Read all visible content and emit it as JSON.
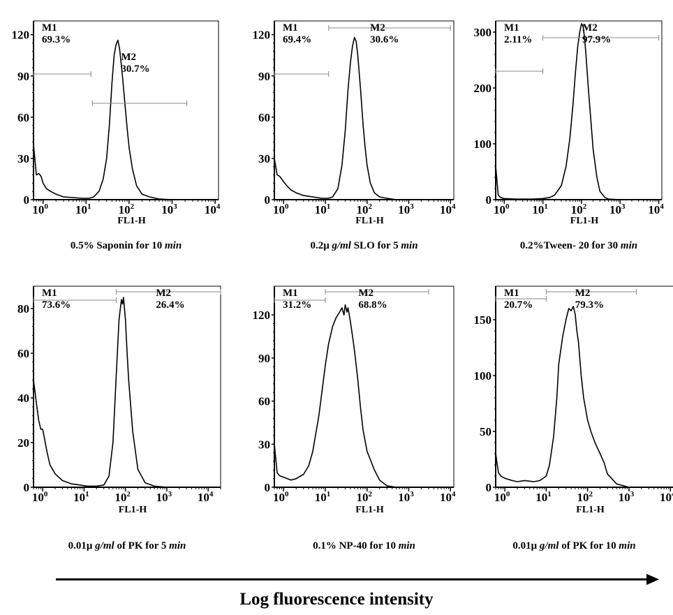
{
  "figure": {
    "x_axis_title": "Log fluorescence intensity"
  },
  "chart_data": [
    {
      "type": "line",
      "xlabel": "FL1-H",
      "caption": {
        "pre": "0.5% Saponin for 10 ",
        "em": "min",
        "post": ""
      },
      "xscale": "log",
      "xlim": [
        0.6,
        12000
      ],
      "ylim": [
        0,
        130
      ],
      "yticks": [
        0,
        30,
        60,
        90,
        120
      ],
      "x": [
        0.6,
        0.7,
        0.8,
        0.9,
        1,
        1.2,
        1.5,
        2,
        3,
        5,
        8,
        12,
        15,
        20,
        25,
        30,
        35,
        40,
        45,
        50,
        55,
        60,
        65,
        70,
        80,
        90,
        100,
        120,
        150,
        200,
        300,
        500,
        1000,
        2000,
        5000,
        10000
      ],
      "y": [
        40,
        18,
        19,
        17,
        12,
        8,
        6,
        4,
        2,
        1.5,
        1,
        1,
        2,
        6,
        15,
        30,
        55,
        85,
        105,
        113,
        116,
        110,
        100,
        90,
        70,
        52,
        38,
        22,
        10,
        4,
        2,
        0.5,
        0,
        0,
        0,
        0
      ],
      "markers": [
        {
          "name": "M1",
          "percent": "69.3%",
          "x_start": 0.6,
          "x_end": 13
        },
        {
          "name": "M2",
          "percent": "30.7%",
          "x_start": 14,
          "x_end": 2200
        }
      ]
    },
    {
      "type": "line",
      "xlabel": "FL1-H",
      "caption": {
        "pre": "0.2μ ",
        "em": "g/ml",
        "post": " SLO for 5 ",
        "em2": "min"
      },
      "xscale": "log",
      "xlim": [
        0.6,
        12000
      ],
      "ylim": [
        0,
        130
      ],
      "yticks": [
        0,
        30,
        60,
        90,
        120
      ],
      "x": [
        0.6,
        0.7,
        0.8,
        0.9,
        1,
        1.2,
        1.5,
        2,
        3,
        5,
        8,
        12,
        15,
        20,
        25,
        30,
        35,
        40,
        45,
        50,
        55,
        60,
        70,
        80,
        90,
        100,
        120,
        150,
        200,
        300,
        500,
        1000,
        10000
      ],
      "y": [
        30,
        18,
        17,
        15,
        13,
        10,
        7,
        5,
        3,
        2,
        1,
        1,
        2,
        8,
        25,
        50,
        80,
        100,
        112,
        118,
        115,
        105,
        80,
        55,
        38,
        25,
        12,
        5,
        2,
        1,
        0,
        0,
        0
      ],
      "markers": [
        {
          "name": "M1",
          "percent": "69.4%",
          "x_start": 0.6,
          "x_end": 12
        },
        {
          "name": "M2",
          "percent": "30.6%",
          "x_start": 12,
          "x_end": 10000
        }
      ]
    },
    {
      "type": "line",
      "xlabel": "FL1-H",
      "caption": {
        "pre": "0.2%Tween- 20 for 30 ",
        "em": "min",
        "post": ""
      },
      "xscale": "log",
      "xlim": [
        0.6,
        12000
      ],
      "ylim": [
        0,
        320
      ],
      "yticks": [
        0,
        100,
        200,
        300
      ],
      "x": [
        0.6,
        0.7,
        0.8,
        1,
        2,
        5,
        10,
        15,
        20,
        30,
        40,
        50,
        60,
        70,
        80,
        90,
        100,
        110,
        120,
        130,
        150,
        180,
        200,
        250,
        300,
        400,
        500,
        1000,
        10000
      ],
      "y": [
        60,
        8,
        4,
        2,
        1,
        1,
        2,
        4,
        8,
        25,
        60,
        110,
        170,
        230,
        275,
        300,
        315,
        310,
        290,
        260,
        200,
        130,
        90,
        40,
        15,
        4,
        1,
        0,
        0
      ],
      "markers": [
        {
          "name": "M1",
          "percent": "2.11%",
          "x_start": 0.6,
          "x_end": 10
        },
        {
          "name": "M2",
          "percent": "97.9%",
          "x_start": 10,
          "x_end": 10000
        }
      ]
    },
    {
      "type": "line",
      "xlabel": "FL1-H",
      "caption": {
        "pre": "0.01μ ",
        "em": "g/ml",
        "post": " of PK for 5 ",
        "em2": "min"
      },
      "xscale": "log",
      "xlim": [
        0.6,
        20000
      ],
      "ylim": [
        0,
        90
      ],
      "yticks": [
        0,
        20,
        40,
        60,
        80
      ],
      "x": [
        0.6,
        0.7,
        0.8,
        0.9,
        1,
        1.1,
        1.3,
        1.5,
        2,
        3,
        5,
        8,
        12,
        20,
        30,
        40,
        50,
        60,
        70,
        80,
        85,
        90,
        95,
        100,
        110,
        120,
        150,
        200,
        300,
        500,
        1000,
        20000
      ],
      "y": [
        48,
        38,
        30,
        26,
        26,
        22,
        15,
        10,
        6,
        3,
        1.5,
        1,
        0.5,
        0.5,
        1,
        5,
        20,
        50,
        75,
        84,
        82,
        85,
        80,
        75,
        60,
        48,
        25,
        8,
        2,
        0.5,
        0,
        0
      ],
      "markers": [
        {
          "name": "M1",
          "percent": "73.6%",
          "x_start": 0.6,
          "x_end": 60
        },
        {
          "name": "M2",
          "percent": "26.4%",
          "x_start": 60,
          "x_end": 20000
        }
      ]
    },
    {
      "type": "line",
      "xlabel": "FL1-H",
      "caption": {
        "pre": "0.1% NP-40 for 10 ",
        "em": "min",
        "post": ""
      },
      "xscale": "log",
      "xlim": [
        0.6,
        12000
      ],
      "ylim": [
        0,
        140
      ],
      "yticks": [
        0,
        30,
        60,
        90,
        120
      ],
      "x": [
        0.6,
        0.7,
        0.8,
        1,
        1.5,
        2,
        3,
        4,
        5,
        7,
        10,
        12,
        15,
        18,
        20,
        22,
        25,
        28,
        30,
        33,
        35,
        40,
        45,
        50,
        60,
        70,
        80,
        100,
        150,
        200,
        300,
        500,
        1000,
        12000
      ],
      "y": [
        30,
        10,
        8,
        7,
        5,
        6,
        9,
        15,
        25,
        50,
        85,
        100,
        112,
        118,
        120,
        122,
        125,
        120,
        127,
        122,
        125,
        115,
        105,
        95,
        75,
        55,
        40,
        25,
        12,
        5,
        1,
        0,
        0,
        0
      ],
      "markers": [
        {
          "name": "M1",
          "percent": "31.2%",
          "x_start": 0.6,
          "x_end": 10
        },
        {
          "name": "M2",
          "percent": "68.8%",
          "x_start": 10,
          "x_end": 3000
        }
      ]
    },
    {
      "type": "line",
      "xlabel": "FL1-H",
      "caption": {
        "pre": "0.01μ ",
        "em": "g/ml",
        "post": " of PK for 10 ",
        "em2": "min"
      },
      "xscale": "log",
      "xlim": [
        0.6,
        12000
      ],
      "ylim": [
        0,
        180
      ],
      "yticks": [
        0,
        50,
        100,
        150
      ],
      "x": [
        0.6,
        0.7,
        0.8,
        1,
        1.5,
        2,
        3,
        5,
        7,
        10,
        12,
        15,
        18,
        20,
        25,
        30,
        35,
        40,
        45,
        50,
        55,
        60,
        70,
        80,
        100,
        120,
        150,
        200,
        250,
        300,
        500,
        1000,
        12000
      ],
      "y": [
        30,
        13,
        10,
        8,
        6,
        5,
        6,
        5,
        6,
        10,
        20,
        45,
        80,
        110,
        135,
        150,
        160,
        158,
        162,
        155,
        140,
        130,
        100,
        80,
        60,
        50,
        40,
        30,
        22,
        12,
        3,
        0,
        0
      ],
      "markers": [
        {
          "name": "M1",
          "percent": "20.7%",
          "x_start": 0.6,
          "x_end": 10
        },
        {
          "name": "M2",
          "percent": "79.3%",
          "x_start": 10,
          "x_end": 1500
        }
      ]
    }
  ]
}
